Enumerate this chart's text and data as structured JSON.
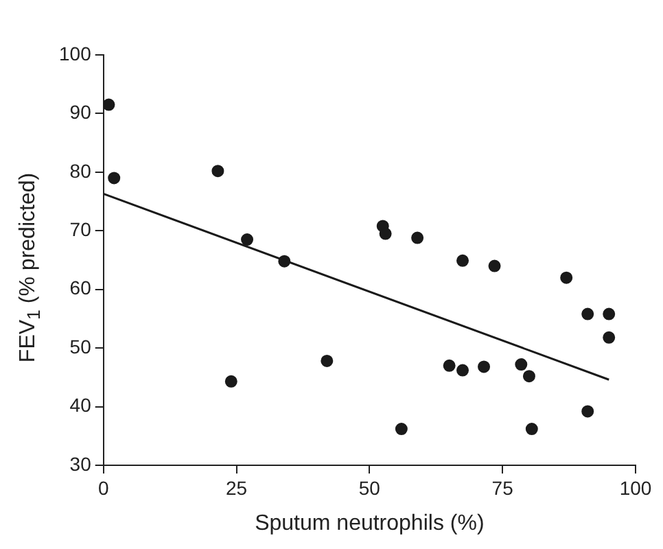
{
  "chart_data": {
    "type": "scatter",
    "xlabel": "Sputum neutrophils (%)",
    "ylabel": "FEV$_{1}$ (% predicted)",
    "xlim": [
      0,
      100
    ],
    "ylim": [
      30,
      100
    ],
    "xticks": [
      0,
      25,
      50,
      75,
      100
    ],
    "yticks": [
      30,
      40,
      50,
      60,
      70,
      80,
      90,
      100
    ],
    "grid": false,
    "series": [
      {
        "marker": "circle",
        "color": "#1a1a1a",
        "x": [
          1,
          2,
          21.5,
          24,
          27,
          34,
          42,
          52.5,
          53,
          56,
          59,
          65,
          67.5,
          67.5,
          71.5,
          73.5,
          78.5,
          80,
          80.5,
          87,
          91,
          91,
          95,
          95
        ],
        "values": [
          91.5,
          79,
          80.2,
          44.3,
          68.5,
          64.8,
          47.8,
          70.8,
          69.5,
          36.2,
          68.8,
          47,
          64.9,
          46.2,
          46.8,
          64,
          47.2,
          45.2,
          36.2,
          62,
          55.8,
          39.2,
          55.8,
          51.8
        ]
      },
      {
        "type": "line",
        "marker": "none",
        "color": "#1a1a1a",
        "x": [
          0,
          95
        ],
        "values": [
          76.3,
          44.6
        ]
      }
    ]
  }
}
